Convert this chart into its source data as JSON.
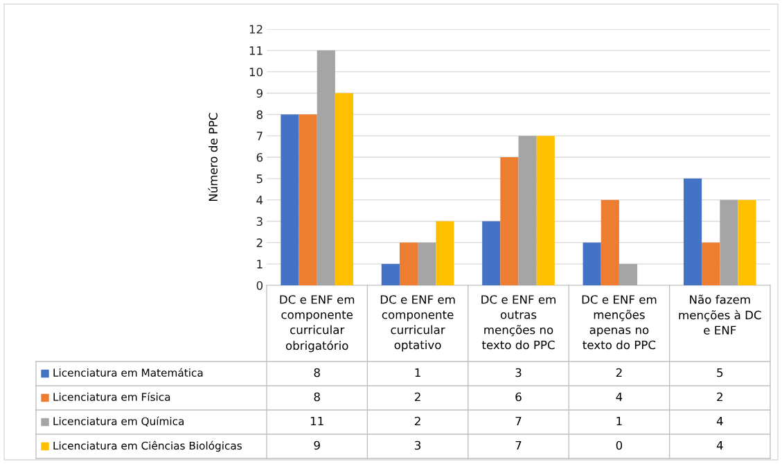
{
  "chart_data": {
    "type": "bar",
    "ylabel": "Número de PPC",
    "categories": [
      "DC e ENF em\ncomponente\ncurricular\nobrigatório",
      "DC e ENF em\ncomponente\ncurricular\noptativo",
      "DC e ENF em\noutras\nmenções no\ntexto do PPC",
      "DC e ENF em\nmenções\napenas no\ntexto do PPC",
      "Não fazem\nmenções à DC\ne ENF"
    ],
    "series": [
      {
        "name": "Licenciatura em Matemática",
        "color": "#4472c4",
        "values": [
          8,
          1,
          3,
          2,
          5
        ]
      },
      {
        "name": "Licenciatura em Física",
        "color": "#ed7d31",
        "values": [
          8,
          2,
          6,
          4,
          2
        ]
      },
      {
        "name": "Licenciatura em Química",
        "color": "#a5a5a5",
        "values": [
          11,
          2,
          7,
          1,
          4
        ]
      },
      {
        "name": "Licenciatura em Ciências Biológicas",
        "color": "#ffc000",
        "values": [
          9,
          3,
          7,
          0,
          4
        ]
      }
    ],
    "ylim": [
      0,
      12
    ],
    "yticks": [
      0,
      1,
      2,
      3,
      4,
      5,
      6,
      7,
      8,
      9,
      10,
      11,
      12
    ],
    "grid": "y",
    "legend": "bottom left",
    "data_labels": true
  }
}
